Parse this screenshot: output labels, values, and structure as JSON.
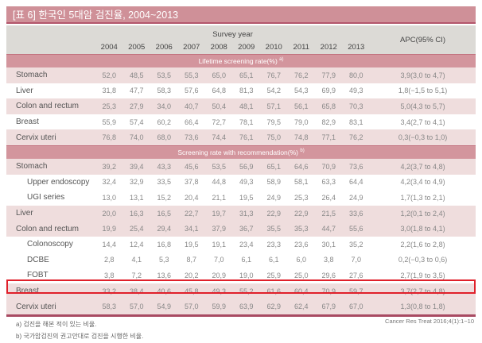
{
  "title": "[표 6] 한국인 5대암 검진율, 2004~2013",
  "header": {
    "survey_year": "Survey year",
    "years": [
      "2004",
      "2005",
      "2006",
      "2007",
      "2008",
      "2009",
      "2010",
      "2011",
      "2012",
      "2013"
    ],
    "apc": "APC(95% CI)"
  },
  "sections": [
    {
      "label": "Lifetime screening rate(%)",
      "sup": "a)",
      "rows": [
        {
          "name": "Stomach",
          "sub": false,
          "pink": true,
          "values": [
            "52,0",
            "48,5",
            "53,5",
            "55,3",
            "65,0",
            "65,1",
            "76,7",
            "76,2",
            "77,9",
            "80,0"
          ],
          "apc": "3,9(3,0 to 4,7)"
        },
        {
          "name": "Liver",
          "sub": false,
          "pink": false,
          "values": [
            "31,8",
            "47,7",
            "58,3",
            "57,6",
            "64,8",
            "81,3",
            "54,2",
            "54,3",
            "69,9",
            "49,3"
          ],
          "apc": "1,8(−1,5 to 5,1)"
        },
        {
          "name": "Colon and rectum",
          "sub": false,
          "pink": true,
          "values": [
            "25,3",
            "27,9",
            "34,0",
            "40,7",
            "50,4",
            "48,1",
            "57,1",
            "56,1",
            "65,8",
            "70,3"
          ],
          "apc": "5,0(4,3 to 5,7)"
        },
        {
          "name": "Breast",
          "sub": false,
          "pink": false,
          "values": [
            "55,9",
            "57,4",
            "60,2",
            "66,4",
            "72,7",
            "78,1",
            "79,5",
            "79,0",
            "82,9",
            "83,1"
          ],
          "apc": "3,4(2,7 to 4,1)"
        },
        {
          "name": "Cervix uteri",
          "sub": false,
          "pink": true,
          "values": [
            "76,8",
            "74,0",
            "68,0",
            "73,6",
            "74,4",
            "76,1",
            "75,0",
            "74,8",
            "77,1",
            "76,2"
          ],
          "apc": "0,3(−0,3 to 1,0)"
        }
      ]
    },
    {
      "label": "Screening rate with recommendation(%)",
      "sup": "b)",
      "rows": [
        {
          "name": "Stomach",
          "sub": false,
          "pink": true,
          "values": [
            "39,2",
            "39,4",
            "43,3",
            "45,6",
            "53,5",
            "56,9",
            "65,1",
            "64,6",
            "70,9",
            "73,6"
          ],
          "apc": "4,2(3,7 to 4,8)"
        },
        {
          "name": "Upper endoscopy",
          "sub": true,
          "pink": false,
          "values": [
            "32,4",
            "32,9",
            "33,5",
            "37,8",
            "44,8",
            "49,3",
            "58,9",
            "58,1",
            "63,3",
            "64,4"
          ],
          "apc": "4,2(3,4 to 4,9)"
        },
        {
          "name": "UGI series",
          "sub": true,
          "pink": false,
          "values": [
            "13,0",
            "13,1",
            "15,2",
            "20,4",
            "21,1",
            "19,5",
            "24,9",
            "25,3",
            "26,4",
            "24,9"
          ],
          "apc": "1,7(1,3 to 2,1)"
        },
        {
          "name": "Liver",
          "sub": false,
          "pink": true,
          "values": [
            "20,0",
            "16,3",
            "16,5",
            "22,7",
            "19,7",
            "31,3",
            "22,9",
            "22,9",
            "21,5",
            "33,6"
          ],
          "apc": "1,2(0,1 to 2,4)"
        },
        {
          "name": "Colon and rectum",
          "sub": false,
          "pink": true,
          "values": [
            "19,9",
            "25,4",
            "29,4",
            "34,1",
            "37,9",
            "36,7",
            "35,5",
            "35,3",
            "44,7",
            "55,6"
          ],
          "apc": "3,0(1,8 to 4,1)"
        },
        {
          "name": "Colonoscopy",
          "sub": true,
          "pink": false,
          "values": [
            "14,4",
            "12,4",
            "16,8",
            "19,5",
            "19,1",
            "23,4",
            "23,3",
            "23,6",
            "30,1",
            "35,2"
          ],
          "apc": "2,2(1,6 to 2,8)"
        },
        {
          "name": "DCBE",
          "sub": true,
          "pink": false,
          "values": [
            "2,8",
            "4,1",
            "5,3",
            "8,7",
            "7,0",
            "6,1",
            "6,1",
            "6,0",
            "3,8",
            "7,0"
          ],
          "apc": "0,2(−0,3 to 0,6)"
        },
        {
          "name": "FOBT",
          "sub": true,
          "pink": false,
          "values": [
            "3,8",
            "7,2",
            "13,6",
            "20,2",
            "20,9",
            "19,0",
            "25,9",
            "25,0",
            "29,6",
            "27,6"
          ],
          "apc": "2,7(1,9 to 3,5)"
        },
        {
          "name": "Breast",
          "sub": false,
          "pink": true,
          "highlighted": true,
          "values": [
            "33,2",
            "38,4",
            "40,6",
            "45,8",
            "49,3",
            "55,2",
            "61,6",
            "60,4",
            "70,9",
            "59,7"
          ],
          "apc": "3,7(2,7 to 4,8)"
        },
        {
          "name": "Cervix uteri",
          "sub": false,
          "pink": true,
          "values": [
            "58,3",
            "57,0",
            "54,9",
            "57,0",
            "59,9",
            "63,9",
            "62,9",
            "62,4",
            "67,9",
            "67,0"
          ],
          "apc": "1,3(0,8 to 1,8)"
        }
      ]
    }
  ],
  "source": "Cancer Res Treat 2016;4(1):1−10",
  "footnotes": [
    "a) 검진을 해본 적이 있는 비율.",
    "b) 국가암검진의 권고안대로 검진을 시행한 비율."
  ],
  "colors": {
    "title_bar": "#cf9098",
    "band": "#d3959d",
    "pink_row": "#efdddd",
    "header": "#dcdad6",
    "highlight": "#e0202a"
  }
}
